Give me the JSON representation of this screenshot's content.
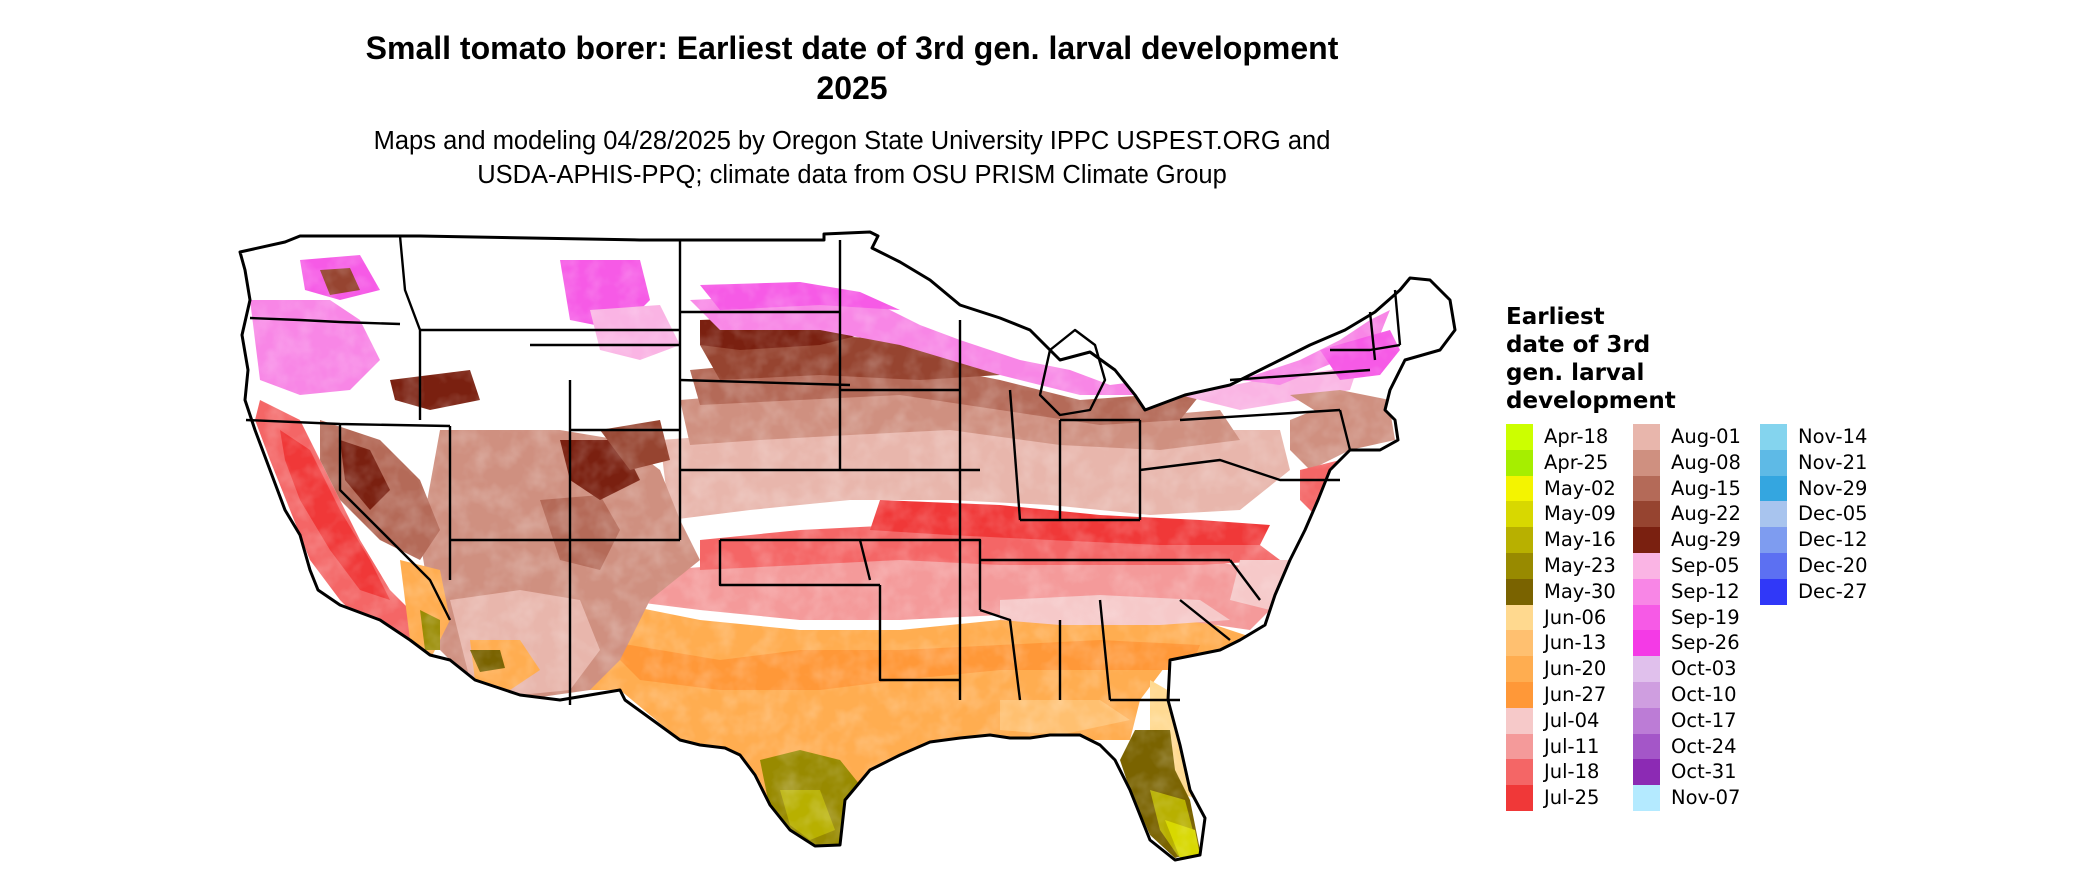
{
  "map": {
    "title_line1": "Small tomato borer: Earliest date of 3rd gen. larval development",
    "title_line2": "2025",
    "subtitle_line1": "Maps and modeling 04/28/2025 by Oregon State University IPPC USPEST.ORG and",
    "subtitle_line2": "USDA-APHIS-PPQ; climate data from OSU PRISM Climate Group",
    "region": "conterminous United States with state boundaries",
    "no_data_color": "#ffffff",
    "border_color": "#000000"
  },
  "legend": {
    "title_lines": [
      "Earliest",
      "date of 3rd",
      "gen. larval",
      "development"
    ],
    "columns": [
      [
        {
          "label": "Apr-18",
          "color": "#ccff00"
        },
        {
          "label": "Apr-25",
          "color": "#a6ee00"
        },
        {
          "label": "May-02",
          "color": "#f4f400"
        },
        {
          "label": "May-09",
          "color": "#d8d800"
        },
        {
          "label": "May-16",
          "color": "#b8b000"
        },
        {
          "label": "May-23",
          "color": "#988a00"
        },
        {
          "label": "May-30",
          "color": "#7a6300"
        },
        {
          "label": "Jun-06",
          "color": "#ffd98f"
        },
        {
          "label": "Jun-13",
          "color": "#ffc070"
        },
        {
          "label": "Jun-20",
          "color": "#ffad50"
        },
        {
          "label": "Jun-27",
          "color": "#ff9838"
        },
        {
          "label": "Jul-04",
          "color": "#f6c9c9"
        },
        {
          "label": "Jul-11",
          "color": "#f49a9a"
        },
        {
          "label": "Jul-18",
          "color": "#f46666"
        },
        {
          "label": "Jul-25",
          "color": "#f03838"
        }
      ],
      [
        {
          "label": "Aug-01",
          "color": "#e8b6ac"
        },
        {
          "label": "Aug-08",
          "color": "#cf9080"
        },
        {
          "label": "Aug-15",
          "color": "#b46a58"
        },
        {
          "label": "Aug-22",
          "color": "#964430"
        },
        {
          "label": "Aug-29",
          "color": "#7a2010"
        },
        {
          "label": "Sep-05",
          "color": "#fab4e4"
        },
        {
          "label": "Sep-12",
          "color": "#f886e6"
        },
        {
          "label": "Sep-19",
          "color": "#f65ae6"
        },
        {
          "label": "Sep-26",
          "color": "#f43ae6"
        },
        {
          "label": "Oct-03",
          "color": "#e0c0ec"
        },
        {
          "label": "Oct-10",
          "color": "#cf9ee0"
        },
        {
          "label": "Oct-17",
          "color": "#bc7cd6"
        },
        {
          "label": "Oct-24",
          "color": "#a456c8"
        },
        {
          "label": "Oct-31",
          "color": "#8c2ab4"
        },
        {
          "label": "Nov-07",
          "color": "#b4eaff"
        }
      ],
      [
        {
          "label": "Nov-14",
          "color": "#84d4ee"
        },
        {
          "label": "Nov-21",
          "color": "#5ebae6"
        },
        {
          "label": "Nov-29",
          "color": "#34a6e0"
        },
        {
          "label": "Dec-05",
          "color": "#a8c4ee"
        },
        {
          "label": "Dec-12",
          "color": "#7e9cf0"
        },
        {
          "label": "Dec-20",
          "color": "#5c70f2"
        },
        {
          "label": "Dec-27",
          "color": "#3038f8"
        }
      ]
    ]
  }
}
